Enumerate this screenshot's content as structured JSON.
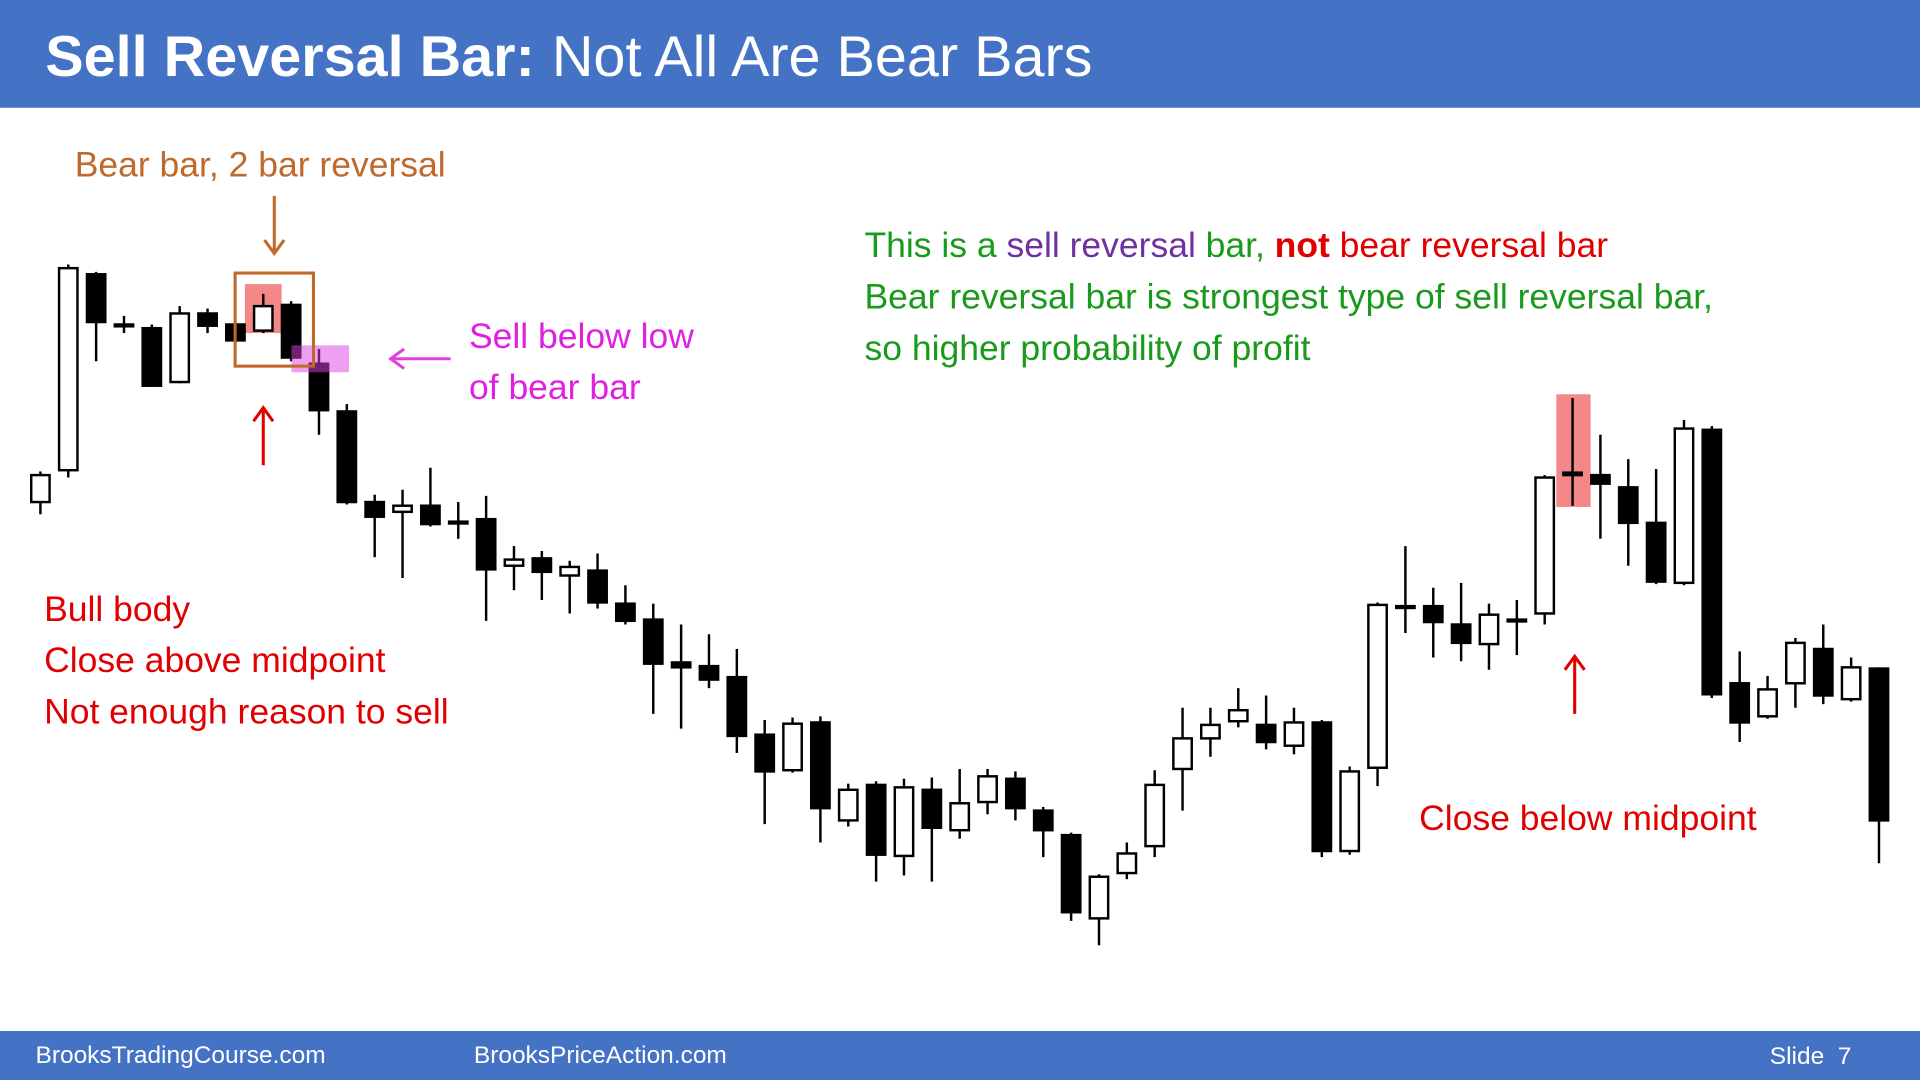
{
  "header": {
    "title_bold": "Sell Reversal Bar:",
    "title_rest": "Not All Are Bear Bars"
  },
  "annotations": {
    "bear_bar": "Bear bar, 2 bar reversal",
    "sell_below": [
      "Sell below low",
      "of bear bar"
    ],
    "green_line1": [
      "This is a",
      "sell reversal",
      "bar,",
      "not",
      "bear reversal bar"
    ],
    "green_line2": "Bear reversal bar is strongest type of sell reversal bar,",
    "green_line3": "so higher probability of profit",
    "bull_body": [
      "Bull body",
      "Close above midpoint",
      "Not enough reason to sell"
    ],
    "close_below": "Close below midpoint"
  },
  "footer": {
    "left": "BrooksTradingCourse.com",
    "middle": "BrooksPriceAction.com",
    "slide": "Slide  7"
  },
  "chart_data": {
    "type": "candlestick",
    "ylim": [
      0,
      800
    ],
    "up_color": "#ffffff",
    "down_color": "#000000",
    "open": [
      390,
      416,
      576,
      535,
      532,
      488,
      544,
      535,
      530,
      551,
      503,
      464,
      390,
      382,
      387,
      374,
      376,
      338,
      344,
      330,
      334,
      307,
      294,
      259,
      256,
      247,
      200,
      171,
      210,
      130,
      159,
      101,
      155,
      122,
      145,
      164,
      138,
      118,
      50,
      87,
      109,
      172,
      197,
      211,
      208,
      191,
      210,
      105,
      173,
      305,
      305,
      290,
      274,
      294,
      299,
      414,
      412,
      402,
      373,
      324,
      449,
      242,
      215,
      242,
      270,
      229,
      254
    ],
    "high": [
      415,
      584,
      578,
      542,
      535,
      550,
      548,
      538,
      560,
      554,
      515,
      470,
      396,
      400,
      418,
      390,
      395,
      354,
      350,
      342,
      348,
      322,
      307,
      290,
      282,
      270,
      212,
      214,
      215,
      160,
      162,
      164,
      165,
      172,
      172,
      170,
      141,
      120,
      86,
      112,
      171,
      222,
      222,
      238,
      232,
      222,
      212,
      174,
      308,
      354,
      320,
      324,
      307,
      310,
      412,
      475,
      445,
      425,
      417,
      457,
      452,
      268,
      248,
      279,
      290,
      263,
      255
    ],
    "low": [
      380,
      410,
      505,
      528,
      484,
      487,
      528,
      520,
      528,
      505,
      445,
      388,
      345,
      328,
      370,
      360,
      293,
      318,
      310,
      299,
      303,
      290,
      217,
      205,
      238,
      185,
      127,
      169,
      112,
      125,
      80,
      85,
      80,
      115,
      135,
      130,
      100,
      48,
      28,
      82,
      100,
      138,
      182,
      206,
      188,
      184,
      100,
      102,
      158,
      283,
      263,
      260,
      253,
      265,
      290,
      387,
      360,
      338,
      323,
      322,
      230,
      194,
      213,
      222,
      225,
      227,
      95
    ],
    "close": [
      412,
      581,
      537,
      534,
      485,
      544,
      534,
      522,
      550,
      508,
      465,
      390,
      378,
      387,
      372,
      373,
      335,
      343,
      333,
      337,
      308,
      293,
      258,
      255,
      245,
      199,
      170,
      209,
      140,
      155,
      102,
      157,
      124,
      144,
      166,
      140,
      122,
      55,
      84,
      103,
      159,
      197,
      208,
      220,
      194,
      210,
      105,
      170,
      306,
      304,
      292,
      275,
      298,
      293,
      410,
      412,
      405,
      373,
      325,
      450,
      233,
      210,
      237,
      275,
      232,
      255,
      130
    ]
  }
}
